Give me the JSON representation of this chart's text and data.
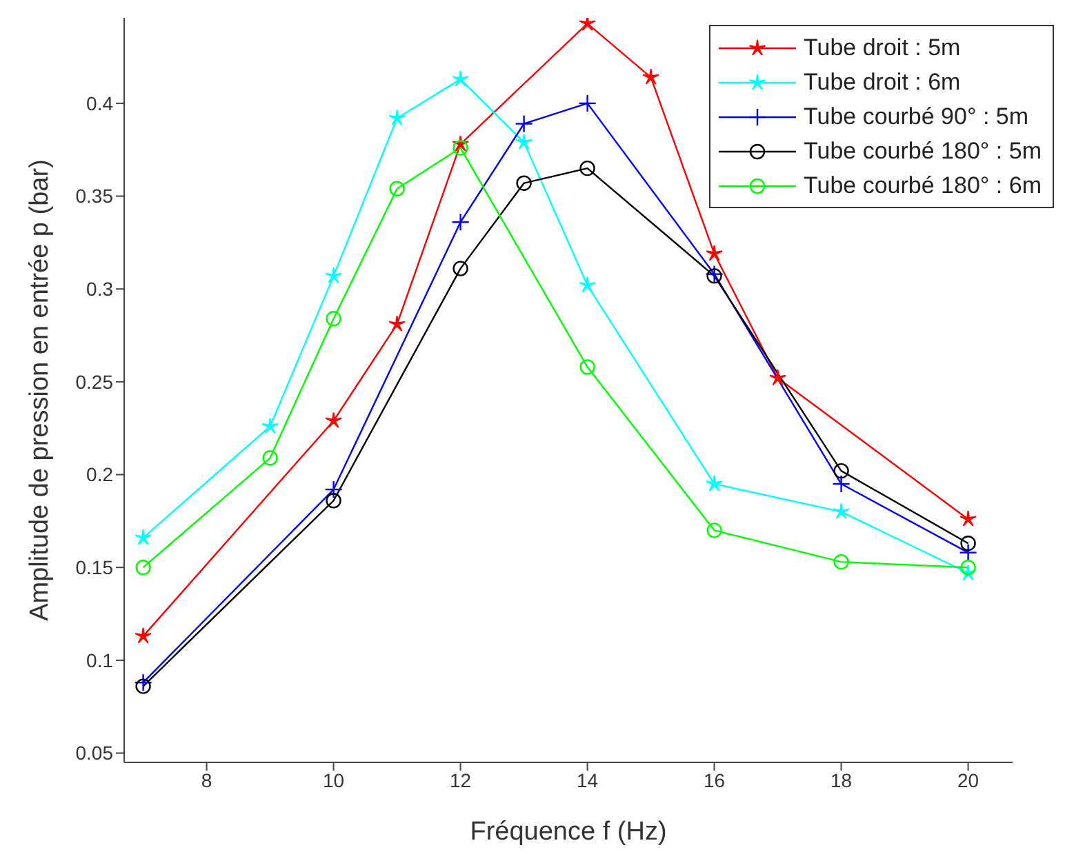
{
  "chart_data": {
    "type": "line",
    "xlabel": "Fréquence f (Hz)",
    "ylabel": "Amplitude de pression en entrée p (bar)",
    "xlim": [
      6.7,
      20.7
    ],
    "ylim": [
      0.045,
      0.446
    ],
    "xticks": [
      8,
      10,
      12,
      14,
      16,
      18,
      20
    ],
    "yticks": [
      0.05,
      0.1,
      0.15,
      0.2,
      0.25,
      0.3,
      0.35,
      0.4
    ],
    "grid": false,
    "legend": "top right",
    "series": [
      {
        "name": "Tube droit : 5m",
        "color": "#ff0000",
        "marker": "star",
        "x": [
          7,
          10,
          11,
          12,
          14,
          15,
          16,
          17,
          20
        ],
        "values": [
          0.113,
          0.229,
          0.281,
          0.378,
          0.443,
          0.414,
          0.319,
          0.252,
          0.176
        ]
      },
      {
        "name": "Tube droit : 6m",
        "color": "#00ffff",
        "marker": "star",
        "x": [
          7,
          9,
          10,
          11,
          12,
          13,
          14,
          16,
          18,
          20
        ],
        "values": [
          0.166,
          0.226,
          0.307,
          0.392,
          0.413,
          0.379,
          0.302,
          0.195,
          0.18,
          0.147
        ]
      },
      {
        "name": "Tube courbé 90° : 5m",
        "color": "#0000ff",
        "marker": "cross",
        "x": [
          7,
          10,
          12,
          13,
          14,
          16,
          18,
          20
        ],
        "values": [
          0.088,
          0.192,
          0.336,
          0.389,
          0.4,
          0.308,
          0.195,
          0.158
        ]
      },
      {
        "name": "Tube courbé 180° : 5m",
        "color": "#000000",
        "marker": "circle",
        "x": [
          7,
          10,
          12,
          13,
          14,
          16,
          18,
          20
        ],
        "values": [
          0.086,
          0.186,
          0.311,
          0.357,
          0.365,
          0.307,
          0.202,
          0.163
        ]
      },
      {
        "name": "Tube courbé 180° : 6m",
        "color": "#00ff00",
        "marker": "circle",
        "x": [
          7,
          9,
          10,
          11,
          12,
          14,
          16,
          18,
          20
        ],
        "values": [
          0.15,
          0.209,
          0.284,
          0.354,
          0.376,
          0.258,
          0.17,
          0.153,
          0.15
        ]
      }
    ]
  }
}
